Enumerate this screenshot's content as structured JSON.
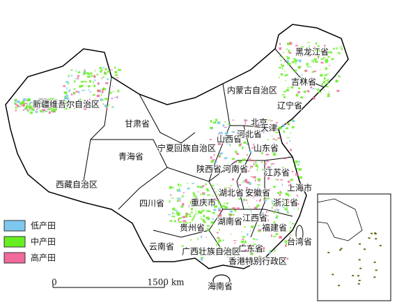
{
  "regions": [
    {
      "label": "黑龙江省"
    },
    {
      "label": "吉林省"
    },
    {
      "label": "辽宁省"
    },
    {
      "label": "内蒙古自治区"
    },
    {
      "label": "新疆维吾尔自治区"
    },
    {
      "label": "甘肃省"
    },
    {
      "label": "青海省"
    },
    {
      "label": "西藏自治区"
    },
    {
      "label": "宁夏回族自治区"
    },
    {
      "label": "山西省"
    },
    {
      "label": "河北省"
    },
    {
      "label": "北京"
    },
    {
      "label": "天津"
    },
    {
      "label": "山东省"
    },
    {
      "label": "陕西省"
    },
    {
      "label": "河南省"
    },
    {
      "label": "江苏省"
    },
    {
      "label": "湖北省"
    },
    {
      "label": "安徽省"
    },
    {
      "label": "上海市"
    },
    {
      "label": "浙江省"
    },
    {
      "label": "四川省"
    },
    {
      "label": "重庆市"
    },
    {
      "label": "湖南省"
    },
    {
      "label": "江西省"
    },
    {
      "label": "福建省"
    },
    {
      "label": "贵州省"
    },
    {
      "label": "云南省"
    },
    {
      "label": "广西壮族自治区"
    },
    {
      "label": "广东省"
    },
    {
      "label": "台湾省"
    },
    {
      "label": "香港特别行政区"
    },
    {
      "label": "海南省"
    }
  ],
  "legend": {
    "items": [
      {
        "label": "低产田",
        "color": "#7ec8f0"
      },
      {
        "label": "中产田",
        "color": "#66ee22"
      },
      {
        "label": "高产田",
        "color": "#f06a9c"
      }
    ]
  },
  "scale_bar": {
    "start": "0",
    "end": "1500 km"
  }
}
